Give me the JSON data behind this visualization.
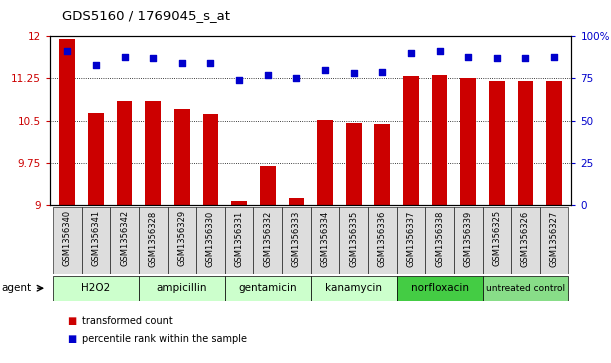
{
  "title": "GDS5160 / 1769045_s_at",
  "samples": [
    "GSM1356340",
    "GSM1356341",
    "GSM1356342",
    "GSM1356328",
    "GSM1356329",
    "GSM1356330",
    "GSM1356331",
    "GSM1356332",
    "GSM1356333",
    "GSM1356334",
    "GSM1356335",
    "GSM1356336",
    "GSM1356337",
    "GSM1356338",
    "GSM1356339",
    "GSM1356325",
    "GSM1356326",
    "GSM1356327"
  ],
  "transformed_count": [
    11.95,
    10.63,
    10.85,
    10.85,
    10.7,
    10.62,
    9.08,
    9.7,
    9.13,
    10.52,
    10.46,
    10.45,
    11.3,
    11.32,
    11.25,
    11.2,
    11.2,
    11.2
  ],
  "percentile_rank": [
    91,
    83,
    88,
    87,
    84,
    84,
    74,
    77,
    75,
    80,
    78,
    79,
    90,
    91,
    88,
    87,
    87,
    88
  ],
  "groups": [
    {
      "name": "H2O2",
      "start": 0,
      "end": 3,
      "color": "#ccffcc"
    },
    {
      "name": "ampicillin",
      "start": 3,
      "end": 6,
      "color": "#ccffcc"
    },
    {
      "name": "gentamicin",
      "start": 6,
      "end": 9,
      "color": "#ccffcc"
    },
    {
      "name": "kanamycin",
      "start": 9,
      "end": 12,
      "color": "#ccffcc"
    },
    {
      "name": "norfloxacin",
      "start": 12,
      "end": 15,
      "color": "#44cc44"
    },
    {
      "name": "untreated control",
      "start": 15,
      "end": 18,
      "color": "#88dd88"
    }
  ],
  "ylim_left": [
    9.0,
    12.0
  ],
  "ylim_right": [
    0,
    100
  ],
  "yticks_left": [
    9.0,
    9.75,
    10.5,
    11.25,
    12.0
  ],
  "ytick_labels_left": [
    "9",
    "9.75",
    "10.5",
    "11.25",
    "12"
  ],
  "yticks_right": [
    0,
    25,
    50,
    75,
    100
  ],
  "ytick_labels_right": [
    "0",
    "25",
    "50",
    "75",
    "100%"
  ],
  "bar_color": "#cc0000",
  "dot_color": "#0000cc",
  "hline_values": [
    9.75,
    10.5,
    11.25
  ],
  "legend_items": [
    {
      "label": "transformed count",
      "color": "#cc0000"
    },
    {
      "label": "percentile rank within the sample",
      "color": "#0000cc"
    }
  ],
  "agent_label": "agent",
  "bar_width": 0.55,
  "xlim": [
    -0.6,
    17.6
  ]
}
